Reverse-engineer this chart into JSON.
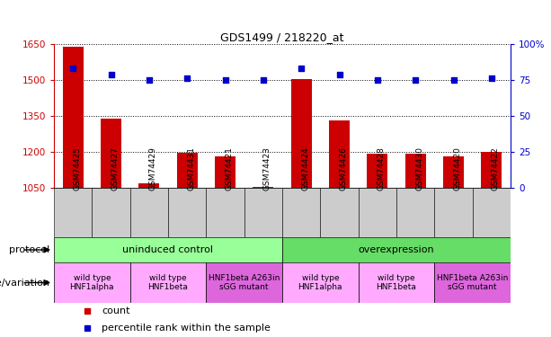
{
  "title": "GDS1499 / 218220_at",
  "samples": [
    "GSM74425",
    "GSM74427",
    "GSM74429",
    "GSM74431",
    "GSM74421",
    "GSM74423",
    "GSM74424",
    "GSM74426",
    "GSM74428",
    "GSM74430",
    "GSM74420",
    "GSM74422"
  ],
  "counts": [
    1640,
    1338,
    1070,
    1198,
    1183,
    1055,
    1505,
    1333,
    1193,
    1192,
    1183,
    1200
  ],
  "percentiles": [
    83,
    79,
    75,
    76,
    75,
    75,
    83,
    79,
    75,
    75,
    75,
    76
  ],
  "ylim_left": [
    1050,
    1650
  ],
  "ylim_right": [
    0,
    100
  ],
  "yticks_left": [
    1050,
    1200,
    1350,
    1500,
    1650
  ],
  "yticks_right": [
    0,
    25,
    50,
    75,
    100
  ],
  "bar_color": "#cc0000",
  "dot_color": "#0000cc",
  "protocol_groups": [
    {
      "label": "uninduced control",
      "start": 0,
      "end": 6,
      "color": "#99ff99"
    },
    {
      "label": "overexpression",
      "start": 6,
      "end": 12,
      "color": "#66dd66"
    }
  ],
  "genotype_groups": [
    {
      "label": "wild type\nHNF1alpha",
      "start": 0,
      "end": 2,
      "color": "#ffaaff"
    },
    {
      "label": "wild type\nHNF1beta",
      "start": 2,
      "end": 4,
      "color": "#ffaaff"
    },
    {
      "label": "HNF1beta A263in\nsGG mutant",
      "start": 4,
      "end": 6,
      "color": "#dd66dd"
    },
    {
      "label": "wild type\nHNF1alpha",
      "start": 6,
      "end": 8,
      "color": "#ffaaff"
    },
    {
      "label": "wild type\nHNF1beta",
      "start": 8,
      "end": 10,
      "color": "#ffaaff"
    },
    {
      "label": "HNF1beta A263in\nsGG mutant",
      "start": 10,
      "end": 12,
      "color": "#dd66dd"
    }
  ],
  "left_label_color": "#cc0000",
  "right_axis_color": "#0000cc",
  "bar_width": 0.55,
  "base_count": 1050,
  "xtick_bg_color": "#cccccc",
  "xtick_fontsize": 6.5,
  "legend_count_color": "#cc0000",
  "legend_pct_color": "#0000cc"
}
